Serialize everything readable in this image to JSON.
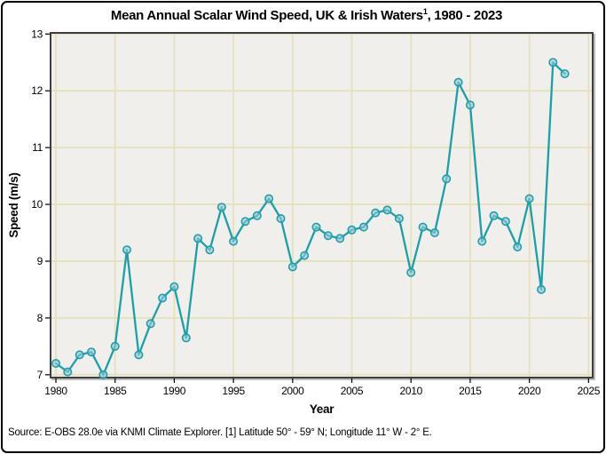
{
  "window": {
    "background": "#ffffff",
    "border_color": "#000000"
  },
  "header": {
    "title_main": "Mean Annual Scalar Wind Speed, UK & Irish Waters",
    "title_sup": "1",
    "title_suffix": ", 1980 - 2023"
  },
  "footer": {
    "source": "Source: E-OBS 28.0e via KNMI Climate Explorer. [1] Latitude 50° - 59° N; Longitude 11° W - 2° E."
  },
  "chart_data": {
    "type": "line",
    "title": "Mean Annual Scalar Wind Speed, UK & Irish Waters¹, 1980 - 2023",
    "xlabel": "Year",
    "ylabel": "Speed (m/s)",
    "x": [
      1980,
      1981,
      1982,
      1983,
      1984,
      1985,
      1986,
      1987,
      1988,
      1989,
      1990,
      1991,
      1992,
      1993,
      1994,
      1995,
      1996,
      1997,
      1998,
      1999,
      2000,
      2001,
      2002,
      2003,
      2004,
      2005,
      2006,
      2007,
      2008,
      2009,
      2010,
      2011,
      2012,
      2013,
      2014,
      2015,
      2016,
      2017,
      2018,
      2019,
      2020,
      2021,
      2022,
      2023
    ],
    "y": [
      7.2,
      7.05,
      7.35,
      7.4,
      7.0,
      7.5,
      9.2,
      7.35,
      7.9,
      8.35,
      8.55,
      7.65,
      9.4,
      9.2,
      9.95,
      9.35,
      9.7,
      9.8,
      10.1,
      9.75,
      8.9,
      9.1,
      9.6,
      9.45,
      9.4,
      9.55,
      9.6,
      9.85,
      9.9,
      9.75,
      8.8,
      9.6,
      9.5,
      10.45,
      12.15,
      11.75,
      9.35,
      9.8,
      9.7,
      9.25,
      10.1,
      8.5,
      12.5,
      12.3
    ],
    "xticks": [
      1980,
      1985,
      1990,
      1995,
      2000,
      2005,
      2010,
      2015,
      2020,
      2025
    ],
    "yticks": [
      7,
      8,
      9,
      10,
      11,
      12,
      13
    ],
    "xlim": [
      1979.55,
      2025.35
    ],
    "ylim": [
      6.95,
      13.02
    ],
    "grid": true,
    "legend": "none",
    "line_color": "#1ba0a8",
    "marker": "circle",
    "marker_fill": "rgba(150,198,216,0.6)",
    "plot_bg": "#f0efec",
    "grid_color": "#e5e1bc",
    "frame_color": "#3e3e3e",
    "frame_shadow_color": "#bdbdbd",
    "tick_color": "#000000"
  }
}
